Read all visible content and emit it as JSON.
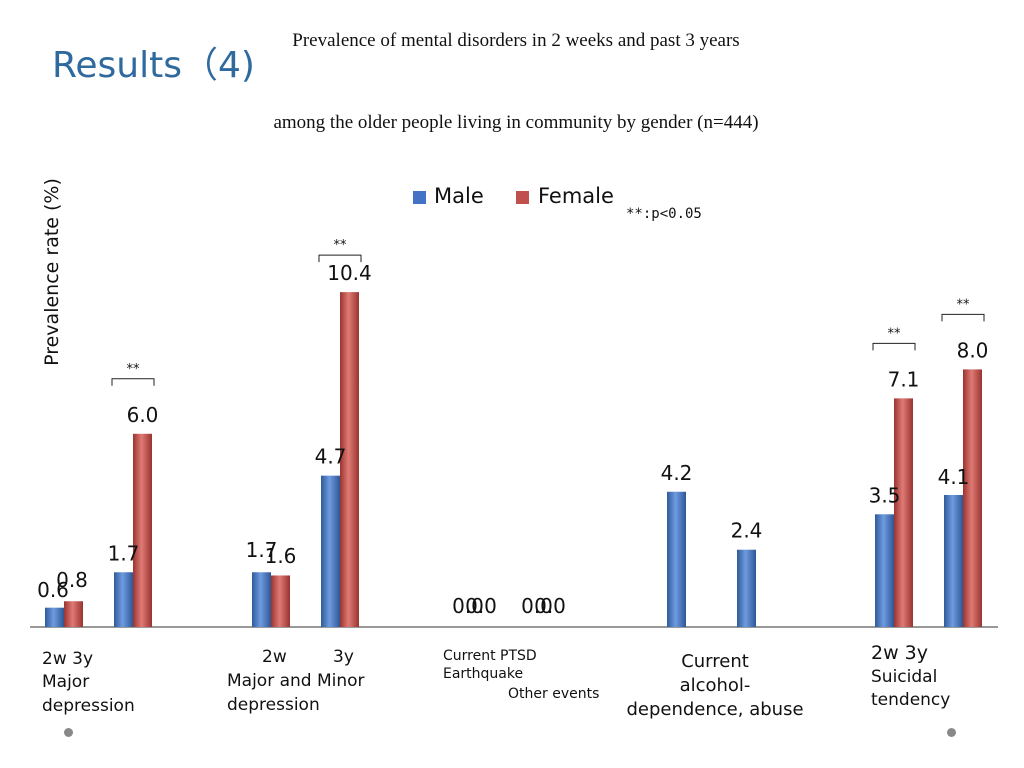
{
  "slide_title": "Results（4)",
  "chart_data": {
    "type": "bar",
    "title": "Prevalence of mental disorders in 2 weeks and past 3 years",
    "subtitle": "among the older people living in community by gender (n=444)",
    "ylabel": "Prevalence rate (%)",
    "ylim": [
      0,
      12.5
    ],
    "grid": false,
    "legend_placement": "top-center",
    "note": "**:p<0.05",
    "colors": {
      "male": "#4472C4",
      "female": "#C0504D"
    },
    "series": [
      {
        "name": "Male",
        "values": [
          0.6,
          1.7,
          1.7,
          4.7,
          0.0,
          0.0,
          4.2,
          2.4,
          3.5,
          4.1
        ]
      },
      {
        "name": "Female",
        "values": [
          0.8,
          6.0,
          1.6,
          10.4,
          0.0,
          0.0,
          0.0,
          0.0,
          7.1,
          8.0
        ]
      }
    ],
    "male_labels": [
      "0.6",
      "1.7",
      "1.7",
      "4.7",
      "0.0",
      "0.0",
      "4.2",
      "2.4",
      "3.5",
      "4.1"
    ],
    "female_labels": [
      "0.8",
      "6.0",
      "1.6",
      "10.4",
      "0.0",
      "0.0",
      "0.0",
      "0.0",
      "7.1",
      "8.0"
    ],
    "significance_marker": "**",
    "significant_bars": [
      1,
      3,
      8,
      9
    ],
    "category_labels": {
      "major_depression": {
        "periods": "2w  3y",
        "name_line1": "Major",
        "name_line2": "depression"
      },
      "major_minor": {
        "period_2w": "2w",
        "period_3y": "3y",
        "name_line1": "Major and Minor",
        "name_line2": "depression"
      },
      "ptsd": {
        "line1": "Current PTSD",
        "line2": "Earthquake",
        "line3": "Other events"
      },
      "alcohol": {
        "line1": "Current",
        "line2": "alcohol-",
        "line3": "dependence, abuse"
      },
      "suicidal": {
        "periods": "2w  3y",
        "name_line1": "Suicidal",
        "name_line2": "tendency"
      }
    }
  }
}
